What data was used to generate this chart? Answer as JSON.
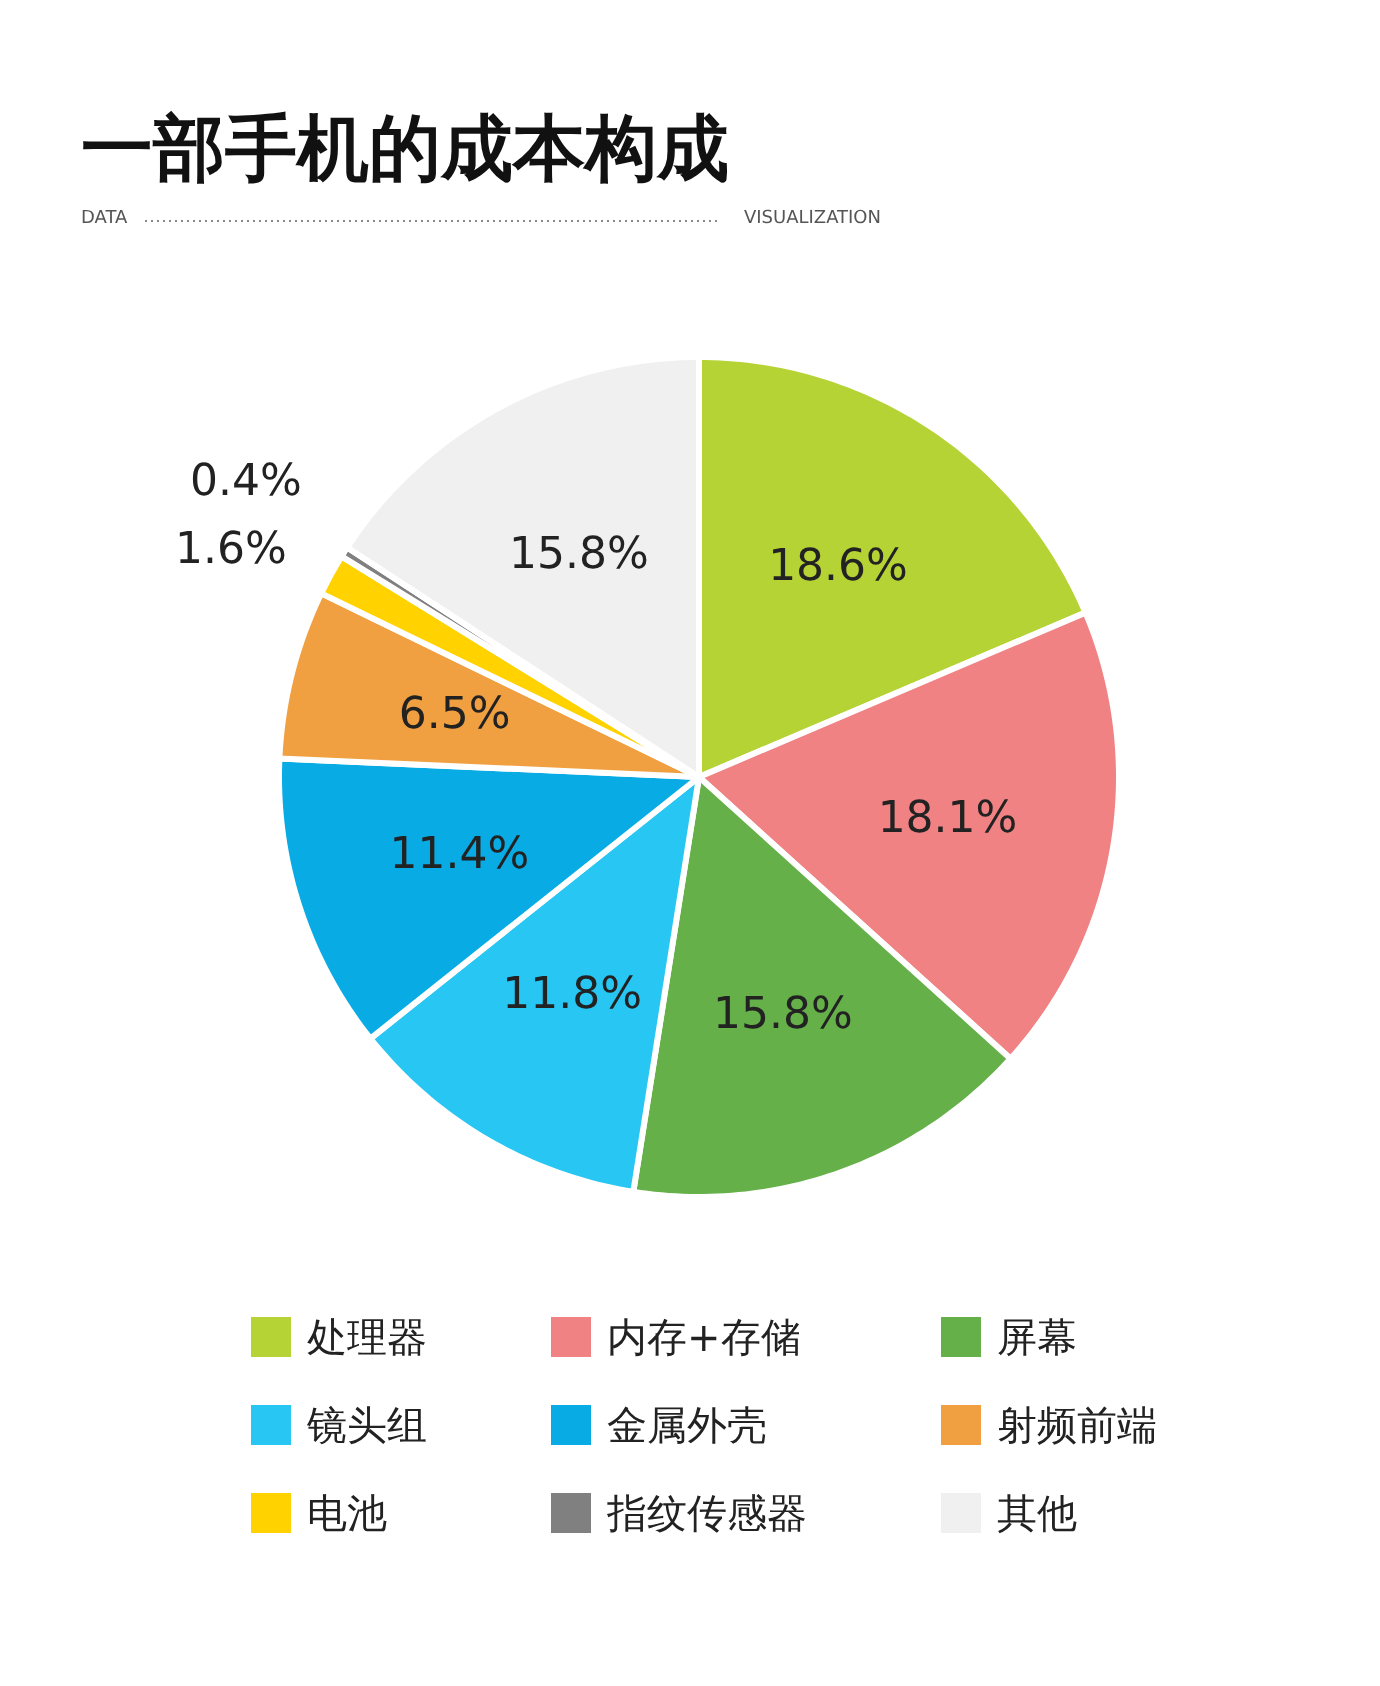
{
  "chart_data": {
    "type": "pie",
    "title": "一部手机的成本构成",
    "categories": [
      "处理器",
      "内存+存储",
      "屏幕",
      "镜头组",
      "金属外壳",
      "射频前端",
      "电池",
      "指纹传感器",
      "其他"
    ],
    "values": [
      18.6,
      18.1,
      15.8,
      11.8,
      11.4,
      6.5,
      1.6,
      0.4,
      15.8
    ],
    "colors": [
      "#b5d334",
      "#f08283",
      "#66b04a",
      "#27c6f3",
      "#08abe3",
      "#f0a040",
      "#ffd200",
      "#808080",
      "#f0f0f0"
    ],
    "value_labels": [
      "18.6%",
      "18.1%",
      "15.8%",
      "11.8%",
      "11.4%",
      "6.5%",
      "1.6%",
      "0.4%",
      "15.8%"
    ],
    "annotations": [
      "DATA",
      "VISUALIZATION"
    ],
    "legend": "bottom"
  }
}
